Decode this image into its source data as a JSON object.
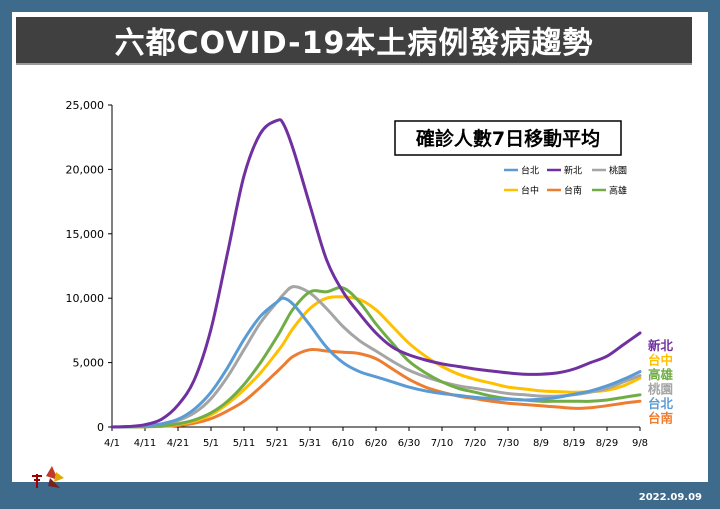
{
  "header": {
    "title": "六都COVID-19本土病例發病趨勢"
  },
  "footer": {
    "date": "2022.09.09"
  },
  "chart_data": {
    "type": "line",
    "title": "確診人數7日移動平均",
    "ylim": [
      0,
      25000
    ],
    "y_ticks": [
      "0",
      "5,000",
      "10,000",
      "15,000",
      "20,000",
      "25,000"
    ],
    "x_ticks": [
      "4/1",
      "4/11",
      "4/21",
      "5/1",
      "5/11",
      "5/21",
      "5/31",
      "6/10",
      "6/20",
      "6/30",
      "7/10",
      "7/20",
      "7/30",
      "8/9",
      "8/19",
      "8/29",
      "9/8"
    ],
    "x": [
      0,
      5,
      10,
      15,
      20,
      25,
      30,
      35,
      40,
      45,
      50,
      52,
      55,
      60,
      65,
      70,
      75,
      80,
      85,
      90,
      95,
      100,
      105,
      110,
      115,
      120,
      125,
      130,
      135,
      140,
      145,
      150,
      155,
      160
    ],
    "series": [
      {
        "name": "台北",
        "color": "#5b9bd5",
        "values": [
          0,
          20,
          80,
          250,
          600,
          1400,
          2700,
          4600,
          6800,
          8600,
          9700,
          10000,
          9500,
          7900,
          6200,
          5000,
          4300,
          3900,
          3500,
          3100,
          2800,
          2600,
          2450,
          2300,
          2200,
          2150,
          2100,
          2150,
          2300,
          2550,
          2800,
          3200,
          3700,
          4300
        ]
      },
      {
        "name": "新北",
        "color": "#7030a0",
        "values": [
          0,
          40,
          180,
          600,
          1700,
          3700,
          7600,
          13500,
          19500,
          22800,
          23800,
          23500,
          21500,
          17200,
          13000,
          10500,
          8800,
          7300,
          6200,
          5600,
          5200,
          4900,
          4700,
          4500,
          4350,
          4200,
          4100,
          4100,
          4200,
          4500,
          5000,
          5500,
          6400,
          7300
        ]
      },
      {
        "name": "桃園",
        "color": "#a5a5a5",
        "values": [
          0,
          15,
          60,
          200,
          500,
          1100,
          2200,
          3900,
          6000,
          8100,
          9700,
          10300,
          10900,
          10400,
          9200,
          7800,
          6700,
          5900,
          5100,
          4400,
          3900,
          3500,
          3200,
          3000,
          2800,
          2600,
          2500,
          2400,
          2400,
          2500,
          2700,
          3000,
          3500,
          4000
        ]
      },
      {
        "name": "台中",
        "color": "#ffc000",
        "values": [
          0,
          5,
          20,
          70,
          200,
          450,
          950,
          1800,
          2900,
          4200,
          5800,
          6500,
          7700,
          9200,
          10000,
          10100,
          9900,
          9100,
          7800,
          6500,
          5500,
          4700,
          4100,
          3700,
          3400,
          3100,
          2950,
          2800,
          2750,
          2700,
          2750,
          2850,
          3200,
          3800
        ]
      },
      {
        "name": "台南",
        "color": "#ed7d31",
        "values": [
          0,
          5,
          20,
          50,
          120,
          300,
          650,
          1250,
          2000,
          3100,
          4300,
          4800,
          5500,
          6000,
          5900,
          5800,
          5700,
          5300,
          4500,
          3700,
          3100,
          2700,
          2400,
          2200,
          2000,
          1850,
          1750,
          1650,
          1550,
          1450,
          1500,
          1650,
          1850,
          2000
        ]
      },
      {
        "name": "高雄",
        "color": "#70ad47",
        "values": [
          0,
          5,
          25,
          80,
          250,
          550,
          1100,
          2000,
          3300,
          5000,
          7000,
          7900,
          9200,
          10500,
          10500,
          10800,
          9700,
          8000,
          6500,
          5100,
          4200,
          3500,
          3000,
          2700,
          2400,
          2200,
          2100,
          2000,
          2000,
          2000,
          2000,
          2100,
          2300,
          2500
        ]
      }
    ],
    "end_labels": [
      "新北",
      "台中",
      "高雄",
      "桃園",
      "台北",
      "台南"
    ],
    "grid": "none",
    "legend": "top-right"
  }
}
